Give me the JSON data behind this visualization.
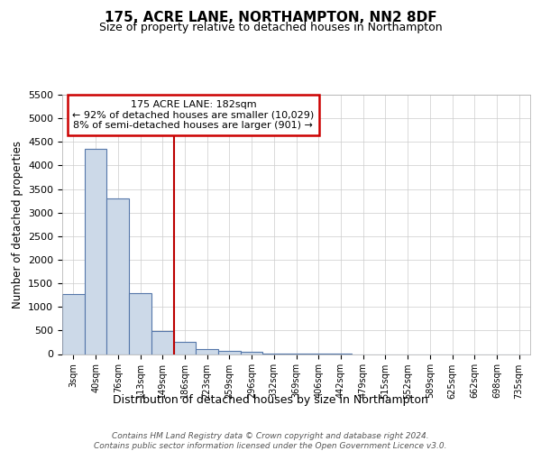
{
  "title": "175, ACRE LANE, NORTHAMPTON, NN2 8DF",
  "subtitle": "Size of property relative to detached houses in Northampton",
  "xlabel": "Distribution of detached houses by size in Northampton",
  "ylabel": "Number of detached properties",
  "property_label": "175 ACRE LANE: 182sqm",
  "annotation_line1": "← 92% of detached houses are smaller (10,029)",
  "annotation_line2": "8% of semi-detached houses are larger (901) →",
  "footer1": "Contains HM Land Registry data © Crown copyright and database right 2024.",
  "footer2": "Contains public sector information licensed under the Open Government Licence v3.0.",
  "bin_labels": [
    "3sqm",
    "40sqm",
    "76sqm",
    "113sqm",
    "149sqm",
    "186sqm",
    "223sqm",
    "259sqm",
    "296sqm",
    "332sqm",
    "369sqm",
    "406sqm",
    "442sqm",
    "479sqm",
    "515sqm",
    "552sqm",
    "589sqm",
    "625sqm",
    "662sqm",
    "698sqm",
    "735sqm"
  ],
  "bar_values": [
    1275,
    4350,
    3300,
    1300,
    490,
    250,
    100,
    75,
    50,
    10,
    5,
    3,
    1,
    0,
    0,
    0,
    0,
    0,
    0,
    0,
    0
  ],
  "bar_color": "#ccd9e8",
  "bar_edge_color": "#5577aa",
  "vline_x_index": 5,
  "vline_color": "#bb0000",
  "ylim": [
    0,
    5500
  ],
  "yticks": [
    0,
    500,
    1000,
    1500,
    2000,
    2500,
    3000,
    3500,
    4000,
    4500,
    5000,
    5500
  ],
  "grid_color": "#cccccc",
  "annotation_box_color": "#cc0000",
  "title_fontsize": 11,
  "subtitle_fontsize": 9,
  "background_color": "#ffffff"
}
